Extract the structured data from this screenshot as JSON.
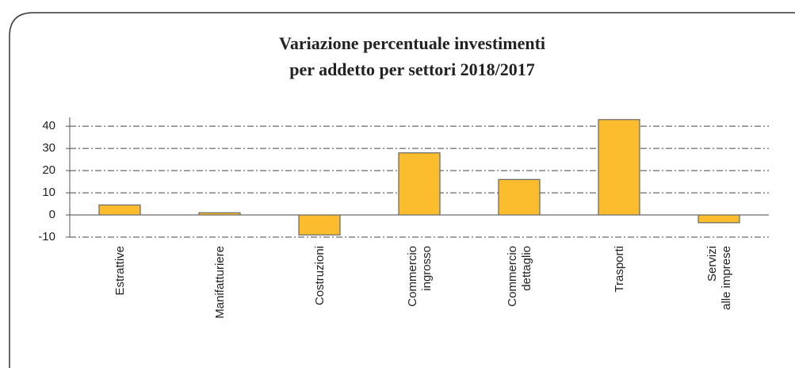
{
  "chart_data": {
    "type": "bar",
    "title": [
      "Variazione percentuale investimenti",
      "per addetto per settori 2018/2017"
    ],
    "categories": [
      "Estrattive",
      "Manifatturiere",
      "Costruzioni",
      "Commercio\ningrosso",
      "Commercio\ndettaglio",
      "Trasporti",
      "Servizi\nalle imprese"
    ],
    "values": [
      4.5,
      1,
      -9,
      28,
      16,
      43,
      -3.5
    ],
    "color": "#fbbd2e",
    "ylim": [
      -10,
      44
    ],
    "yticks": [
      -10,
      0,
      10,
      20,
      30,
      40
    ],
    "grid": true
  }
}
